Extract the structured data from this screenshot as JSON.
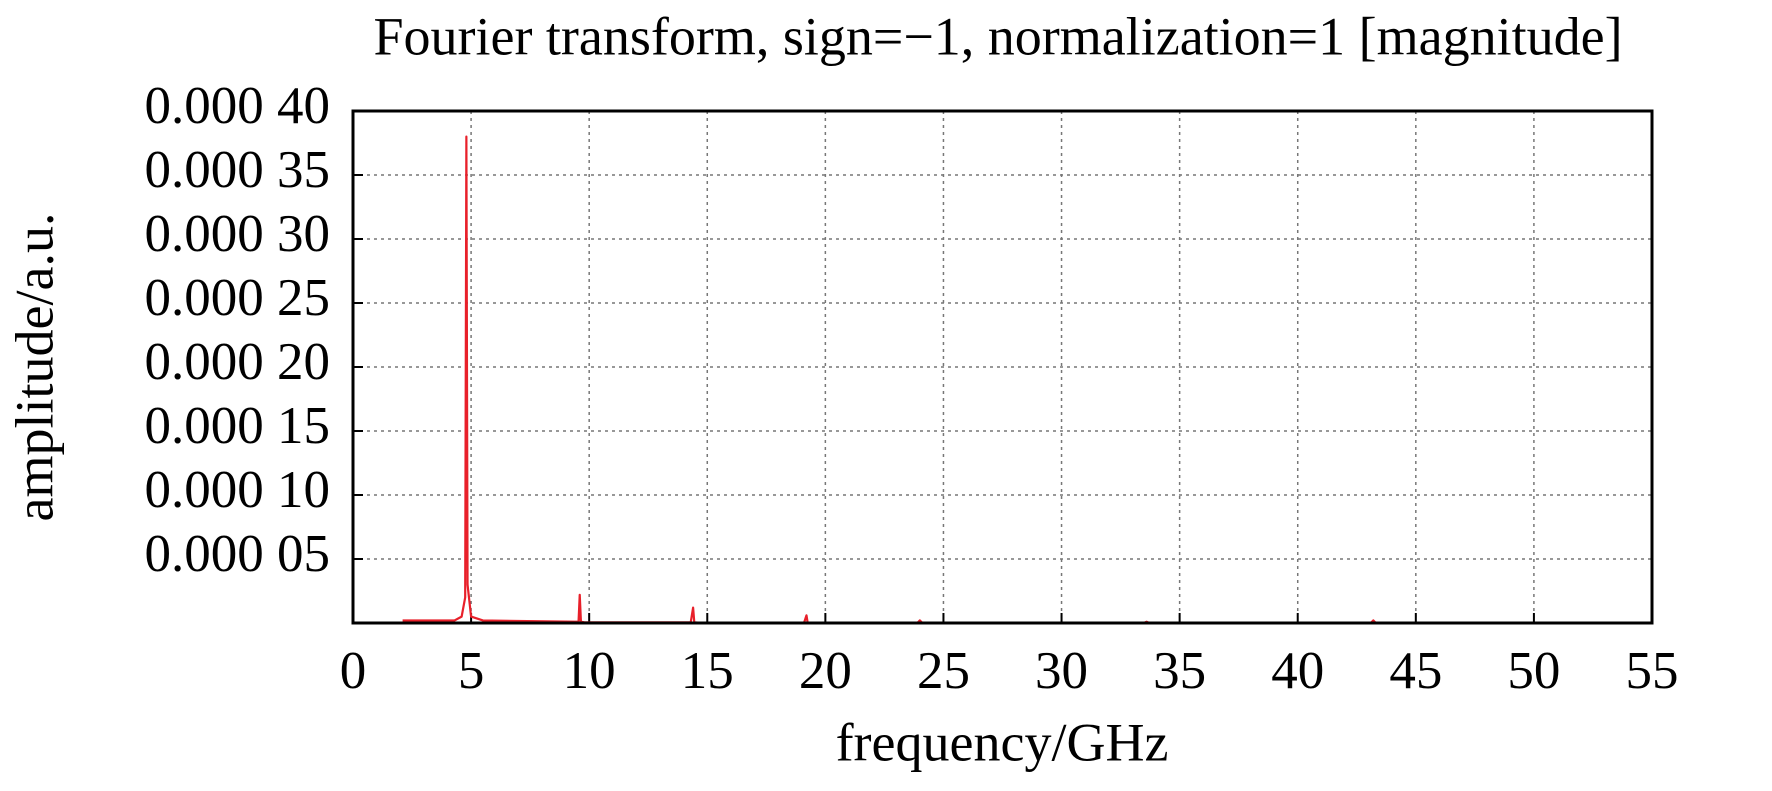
{
  "chart_data": {
    "type": "line",
    "title": "Fourier transform, sign=−1, normalization=1 [magnitude]",
    "x_label": "frequency/GHz",
    "y_label": "amplitude/a.u.",
    "xlim": [
      0,
      55
    ],
    "xticks": [
      0,
      5,
      10,
      15,
      20,
      25,
      30,
      35,
      40,
      45,
      50,
      55
    ],
    "ylim": [
      0,
      0.0004
    ],
    "yticks": [
      {
        "value": 5e-05,
        "label": "0.000 05"
      },
      {
        "value": 0.0001,
        "label": "0.000 10"
      },
      {
        "value": 0.00015,
        "label": "0.000 15"
      },
      {
        "value": 0.0002,
        "label": "0.000 20"
      },
      {
        "value": 0.00025,
        "label": "0.000 25"
      },
      {
        "value": 0.0003,
        "label": "0.000 30"
      },
      {
        "value": 0.00035,
        "label": "0.000 35"
      },
      {
        "value": 0.0004,
        "label": "0.000 40"
      }
    ],
    "grid": true,
    "series": [
      {
        "color": "#e8202a",
        "x": [
          2.1,
          4.3,
          4.6,
          4.75,
          4.8,
          4.85,
          5.0,
          5.5,
          9.4,
          9.55,
          9.6,
          9.65,
          9.8,
          14.3,
          14.4,
          14.45,
          14.6,
          19.1,
          19.2,
          19.25,
          19.4,
          23.9,
          24.0,
          24.1,
          33.5,
          33.6,
          33.7,
          43.1,
          43.2,
          43.3,
          44
        ],
        "values": [
          2e-06,
          2e-06,
          5e-06,
          2e-05,
          0.00038,
          3e-05,
          5e-06,
          2e-06,
          1e-06,
          1e-06,
          2.2e-05,
          1e-06,
          5e-07,
          5e-07,
          1.2e-05,
          5e-07,
          3e-07,
          3e-07,
          6e-06,
          3e-07,
          2e-07,
          2e-07,
          2e-06,
          2e-07,
          2e-07,
          1e-06,
          2e-07,
          2e-07,
          2e-06,
          2e-07,
          2e-07
        ]
      }
    ]
  }
}
